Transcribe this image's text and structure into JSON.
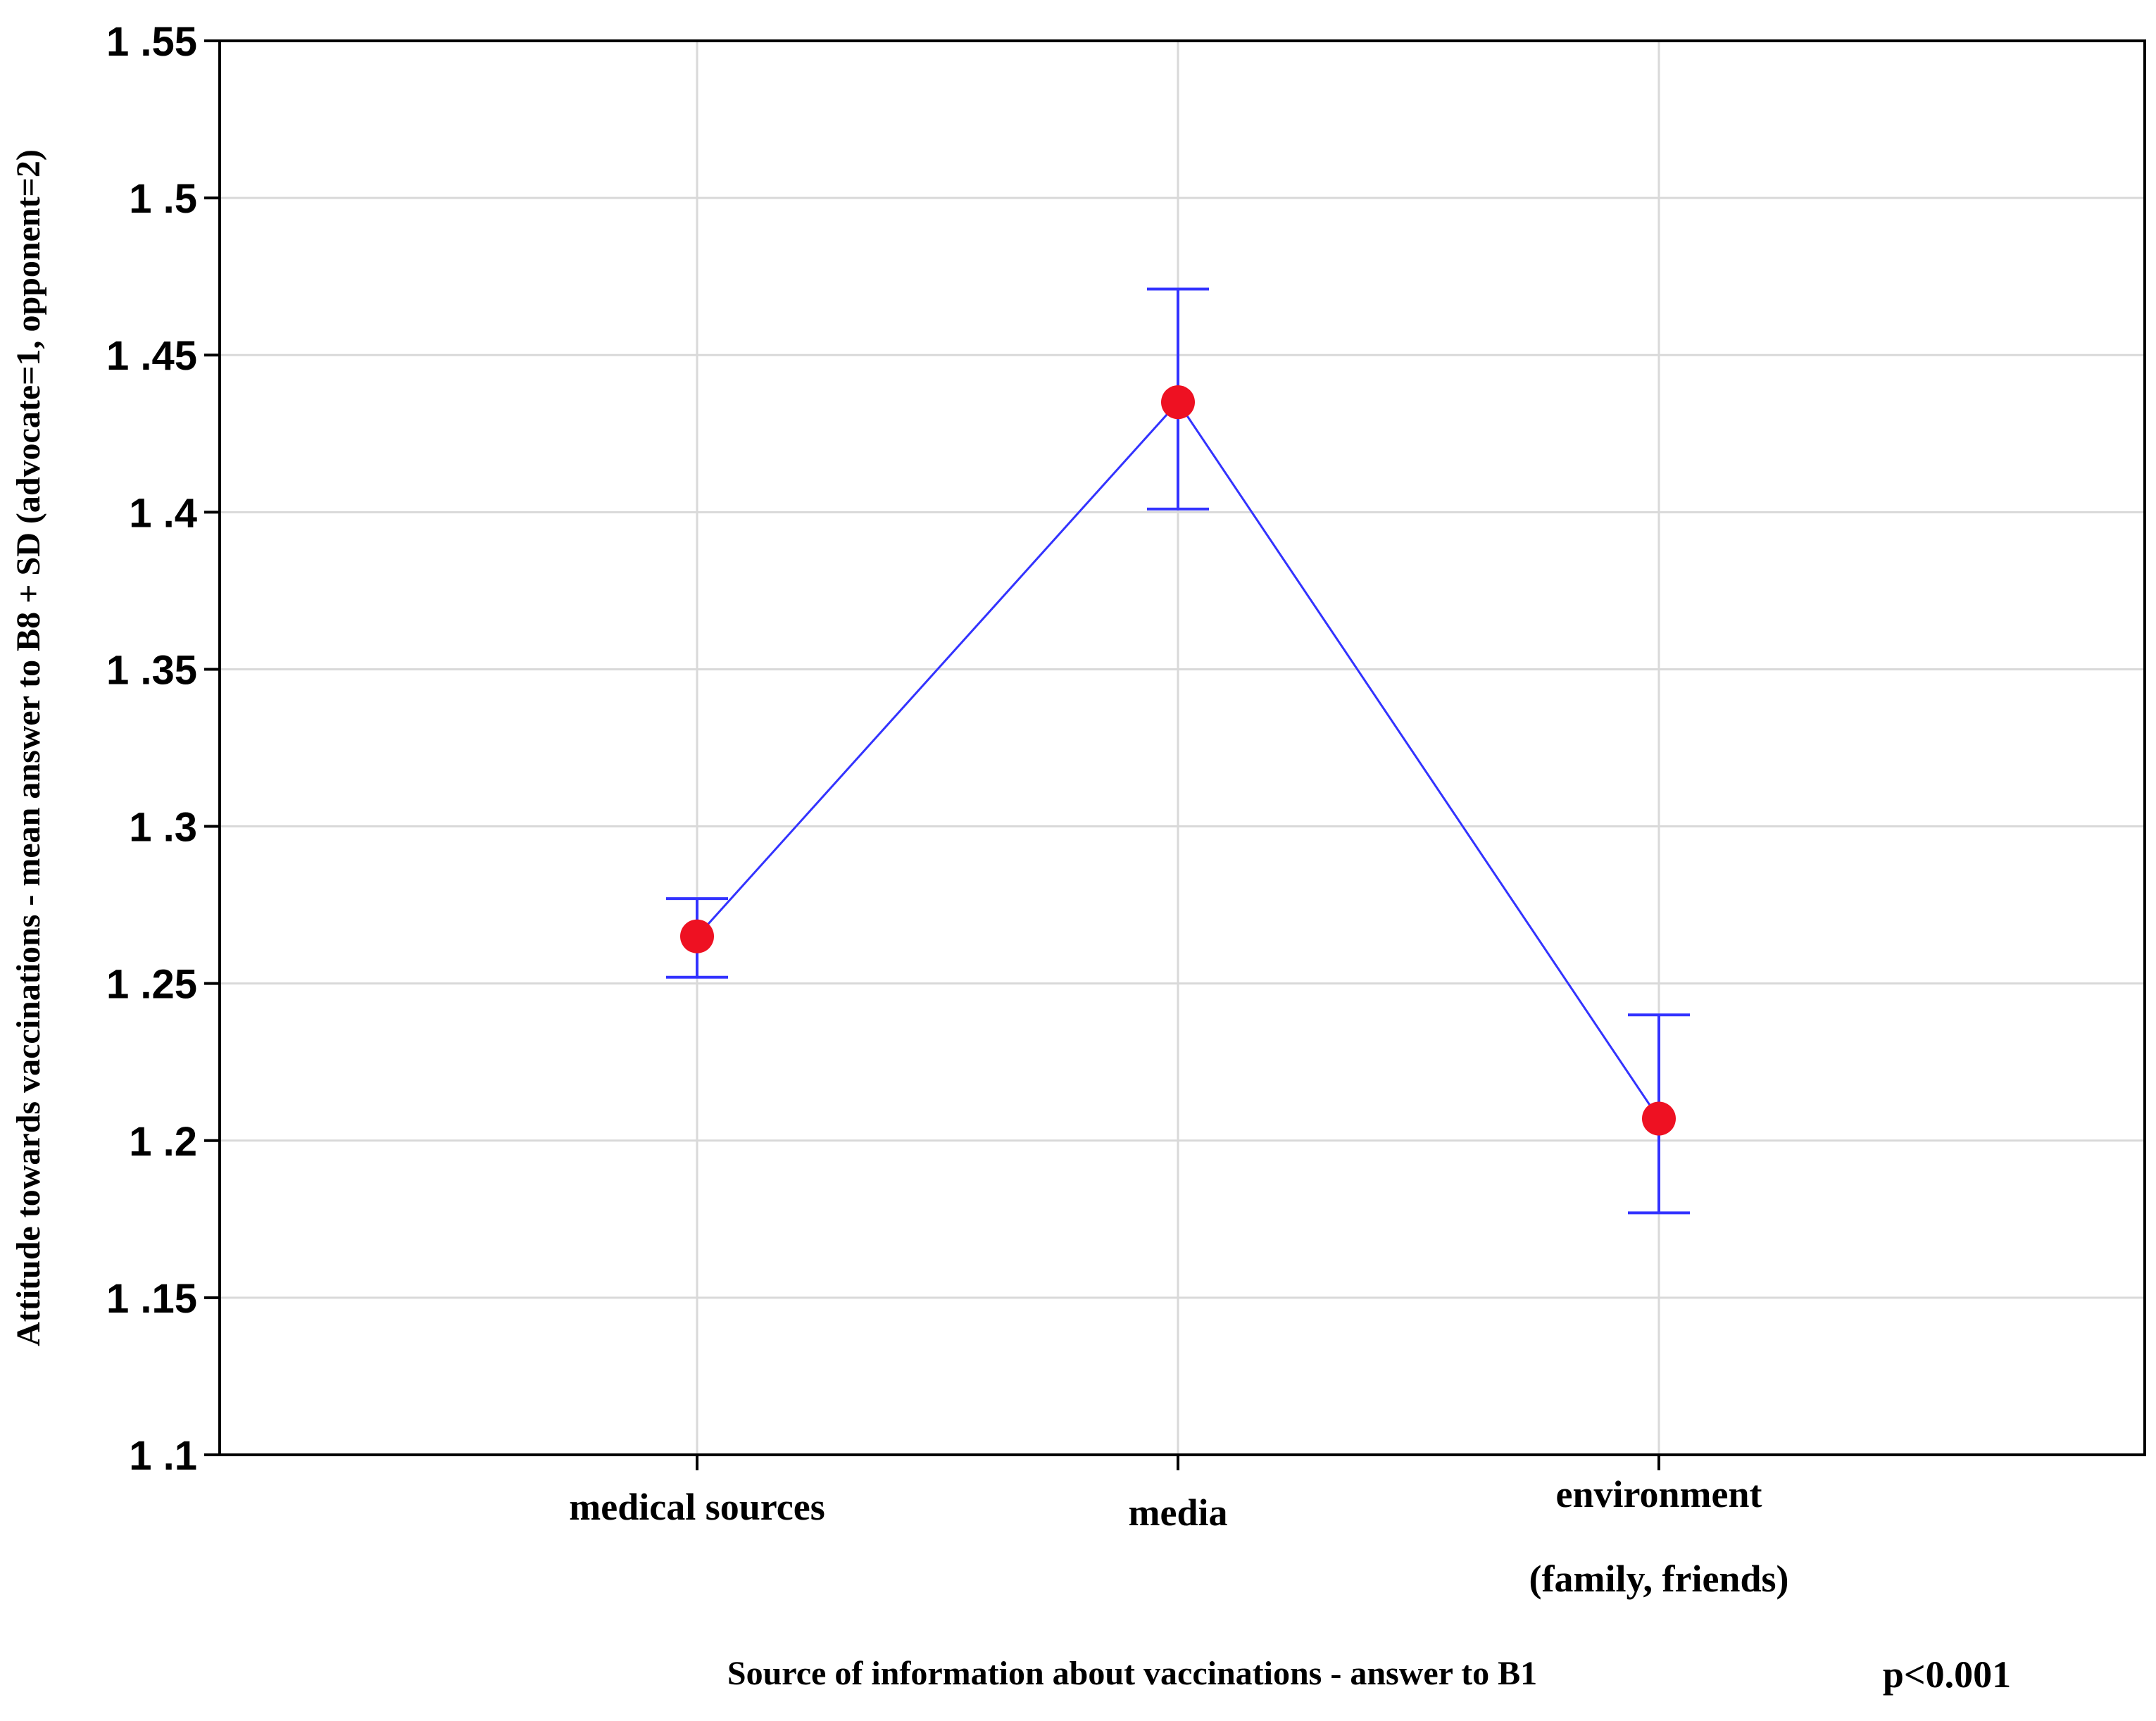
{
  "chart_data": {
    "type": "line",
    "categories": [
      "medical sources",
      "media",
      "environment\n(family, friends)"
    ],
    "series": [
      {
        "values": [
          1.265,
          1.435,
          1.207
        ],
        "error_low": [
          1.252,
          1.401,
          1.177
        ],
        "error_high": [
          1.277,
          1.471,
          1.24
        ],
        "line_color": "#3333ff",
        "marker_color": "#ee1122",
        "errorbar_color": "#3333ff"
      }
    ],
    "ylim": [
      1.1,
      1.55
    ],
    "yticks": [
      1.1,
      1.15,
      1.2,
      1.25,
      1.3,
      1.35,
      1.4,
      1.45,
      1.5,
      1.55
    ],
    "ytick_labels": [
      "1 .1",
      "1 .15",
      "1 .2",
      "1 .25",
      "1 .3",
      "1 .35",
      "1 .4",
      "1 .45",
      "1 .5",
      "1 .55"
    ],
    "xlabel": "Source of information about vaccinations - answer to B1",
    "ylabel": "Attitude towards vaccinations - mean answer to B8 + SD (advocate=1, opponent=2)",
    "annotation": "p<0.001",
    "grid": true,
    "grid_color": "#d9d9d9"
  }
}
